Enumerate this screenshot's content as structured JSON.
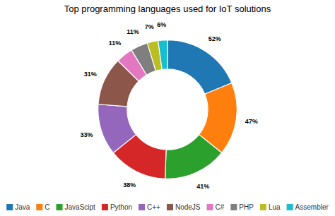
{
  "chart_data": {
    "type": "donut",
    "title": "Top programming languages used for IoT solutions",
    "categories": [
      "Java",
      "C",
      "JavaScipt",
      "Python",
      "C++",
      "NodeJS",
      "C#",
      "PHP",
      "Lua",
      "Assembler"
    ],
    "values": [
      52,
      47,
      41,
      38,
      33,
      31,
      11,
      11,
      7,
      6
    ],
    "value_labels": [
      "52%",
      "47%",
      "41%",
      "38%",
      "33%",
      "31%",
      "11%",
      "11%",
      "7%",
      "6%"
    ],
    "data_labels": true,
    "legend": "bottom"
  }
}
